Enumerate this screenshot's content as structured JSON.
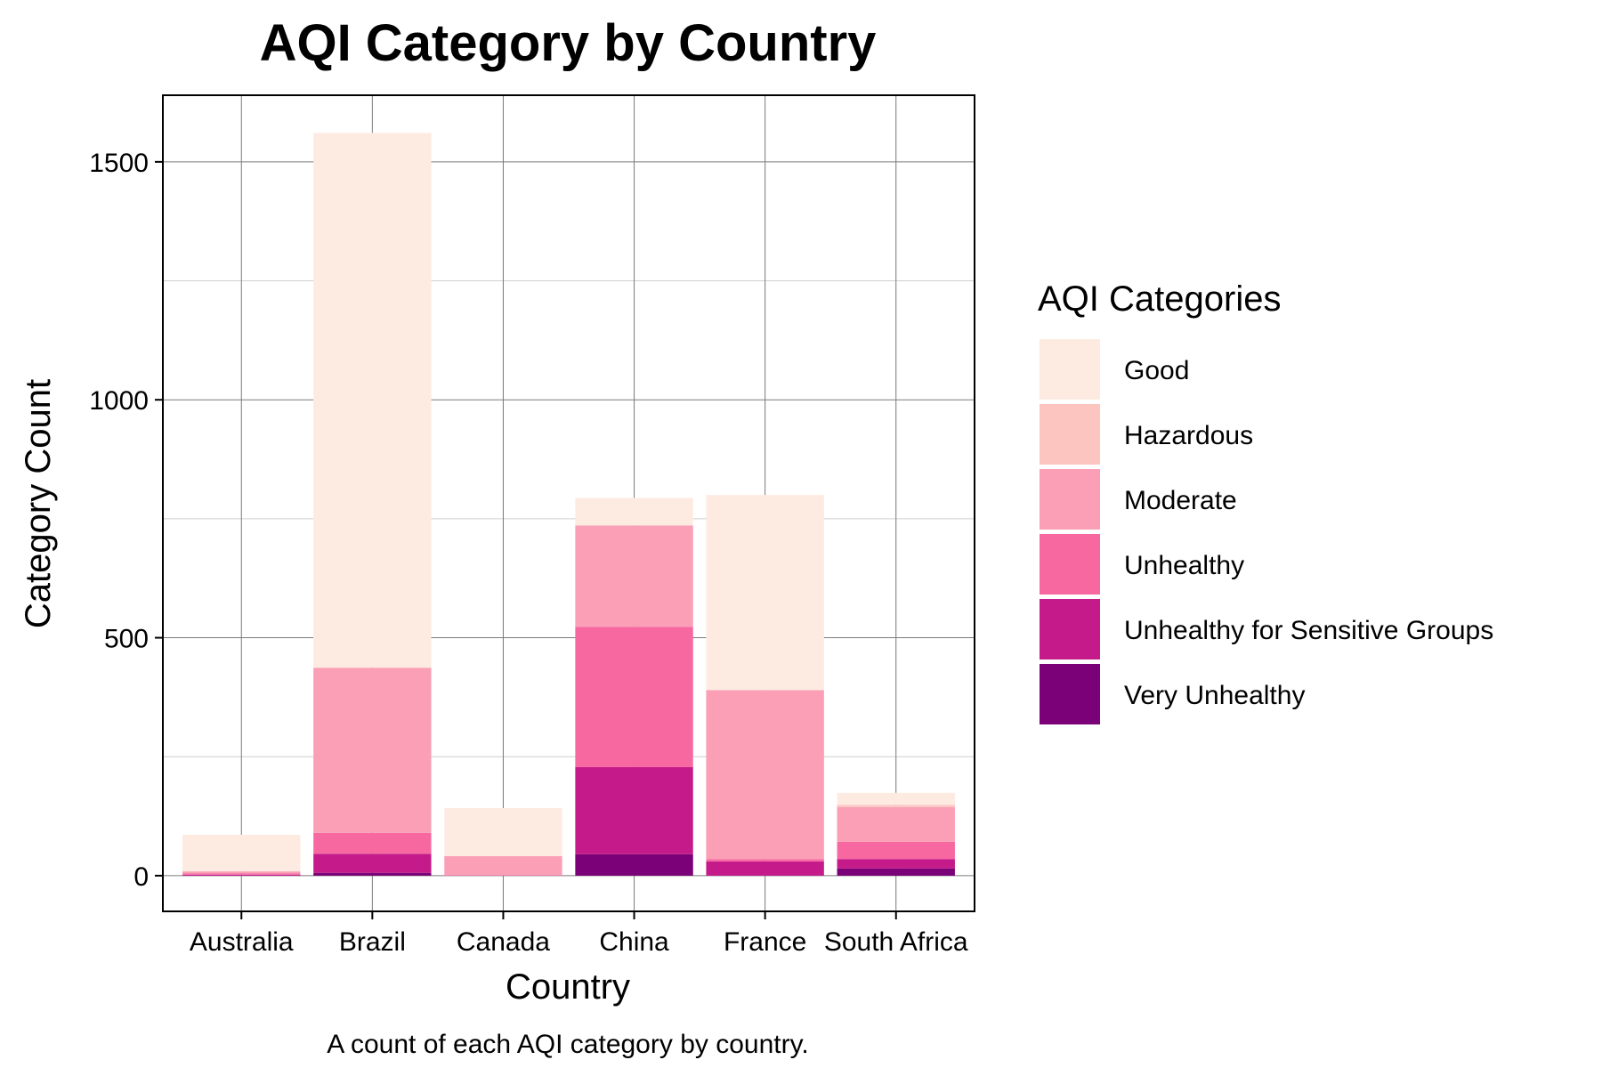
{
  "chart_data": {
    "type": "bar",
    "stacked": true,
    "title": "AQI Category by Country",
    "xlabel": "Country",
    "ylabel": "Category Count",
    "caption": "A count of each AQI category by country.",
    "categories": [
      "Australia",
      "Brazil",
      "Canada",
      "China",
      "France",
      "South Africa"
    ],
    "yticks": [
      0,
      500,
      1000,
      1500
    ],
    "ylim": [
      -75,
      1640
    ],
    "grid": true,
    "legend": {
      "title": "AQI Categories",
      "placement": "right"
    },
    "series": [
      {
        "name": "Very Unhealthy",
        "color": "#7A0177",
        "values": [
          0,
          6,
          0,
          45,
          0,
          15
        ]
      },
      {
        "name": "Unhealthy for Sensitive Groups",
        "color": "#C51B8A",
        "values": [
          2,
          40,
          0,
          183,
          30,
          20
        ]
      },
      {
        "name": "Unhealthy",
        "color": "#F768A1",
        "values": [
          3,
          44,
          1,
          295,
          5,
          36
        ]
      },
      {
        "name": "Moderate",
        "color": "#FA9FB5",
        "values": [
          4,
          347,
          40,
          213,
          355,
          73
        ]
      },
      {
        "name": "Hazardous",
        "color": "#FCC5C0",
        "values": [
          0,
          0,
          0,
          0,
          0,
          5
        ]
      },
      {
        "name": "Good",
        "color": "#FDEBE2",
        "values": [
          77,
          1124,
          101,
          58,
          410,
          25
        ]
      }
    ],
    "legend_order": [
      "Good",
      "Hazardous",
      "Moderate",
      "Unhealthy",
      "Unhealthy for Sensitive Groups",
      "Very Unhealthy"
    ]
  }
}
